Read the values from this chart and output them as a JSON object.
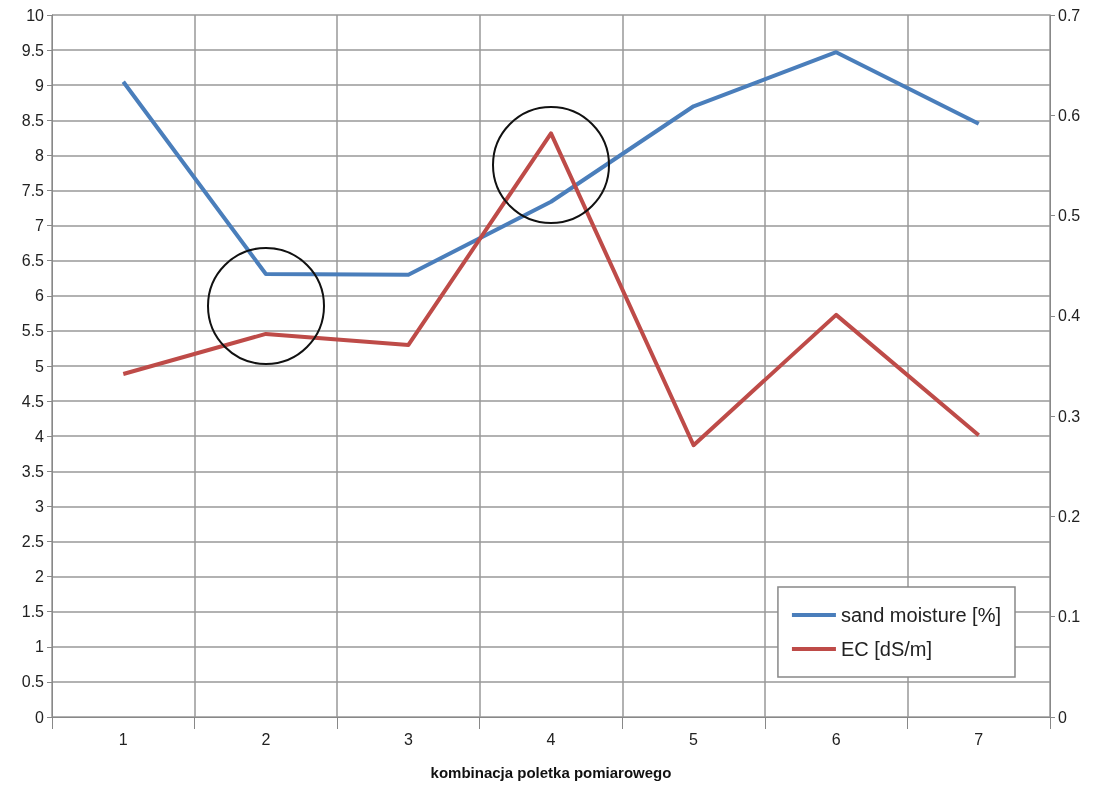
{
  "chart_data": {
    "type": "line",
    "xlabel": "kombinacja poletka pomiarowego",
    "categories": [
      "1",
      "2",
      "3",
      "4",
      "5",
      "6",
      "7"
    ],
    "series": [
      {
        "name": "sand moisture [%]",
        "color": "#4a7ebb",
        "values": [
          9.05,
          6.31,
          6.3,
          7.34,
          8.7,
          9.47,
          8.45
        ]
      },
      {
        "name": "EC [dS/m]",
        "color": "#be4b48",
        "axis": "y2",
        "values": [
          0.342,
          0.382,
          0.371,
          0.582,
          0.271,
          0.401,
          0.281
        ]
      }
    ],
    "ylim": [
      0,
      10
    ],
    "yticks": [
      0,
      0.5,
      1,
      1.5,
      2,
      2.5,
      3,
      3.5,
      4,
      4.5,
      5,
      5.5,
      6,
      6.5,
      7,
      7.5,
      8,
      8.5,
      9,
      9.5,
      10
    ],
    "y2lim": [
      0,
      0.7
    ],
    "y2ticks": [
      0,
      0.1,
      0.2,
      0.3,
      0.4,
      0.5,
      0.6,
      0.7
    ],
    "grid": true,
    "legend": "bottom right",
    "marker": "none",
    "line_style": "solid"
  }
}
